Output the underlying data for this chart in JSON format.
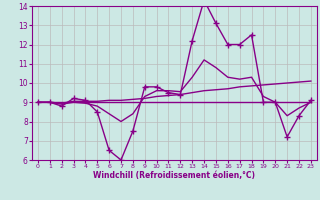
{
  "xlabel": "Windchill (Refroidissement éolien,°C)",
  "bg_color": "#cce8e4",
  "line_color": "#880088",
  "grid_color": "#bbbbbb",
  "xlim": [
    -0.5,
    23.5
  ],
  "ylim": [
    6,
    14
  ],
  "xticks": [
    0,
    1,
    2,
    3,
    4,
    5,
    6,
    7,
    8,
    9,
    10,
    11,
    12,
    13,
    14,
    15,
    16,
    17,
    18,
    19,
    20,
    21,
    22,
    23
  ],
  "yticks": [
    6,
    7,
    8,
    9,
    10,
    11,
    12,
    13,
    14
  ],
  "curve_main": [
    9.0,
    9.0,
    8.8,
    9.2,
    9.1,
    8.5,
    6.5,
    6.0,
    7.5,
    9.8,
    9.8,
    9.5,
    9.4,
    12.2,
    14.3,
    13.1,
    12.0,
    12.0,
    12.5,
    9.0,
    9.0,
    7.2,
    8.3,
    9.1
  ],
  "curve_trend_up": [
    9.0,
    9.0,
    8.95,
    9.05,
    9.05,
    9.05,
    9.1,
    9.1,
    9.15,
    9.2,
    9.3,
    9.35,
    9.4,
    9.5,
    9.6,
    9.65,
    9.7,
    9.8,
    9.85,
    9.9,
    9.95,
    10.0,
    10.05,
    10.1
  ],
  "curve_flat": [
    9.0,
    9.0,
    9.0,
    9.0,
    9.0,
    9.0,
    9.0,
    9.0,
    9.0,
    9.0,
    9.0,
    9.0,
    9.0,
    9.0,
    9.0,
    9.0,
    9.0,
    9.0,
    9.0,
    9.0,
    9.0,
    9.0,
    9.0,
    9.0
  ],
  "curve_smooth": [
    9.0,
    9.0,
    8.9,
    9.0,
    8.95,
    8.8,
    8.4,
    8.0,
    8.4,
    9.3,
    9.6,
    9.6,
    9.55,
    10.3,
    11.2,
    10.8,
    10.3,
    10.2,
    10.3,
    9.3,
    9.0,
    8.3,
    8.7,
    9.0
  ]
}
